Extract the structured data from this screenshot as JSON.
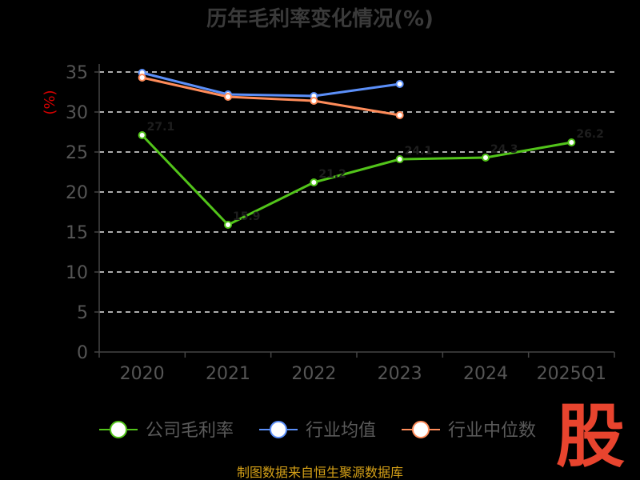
{
  "chart_data": {
    "type": "line",
    "title": "历年毛利率变化情况(%)",
    "ylabel": "(%)",
    "xlabel": "",
    "categories": [
      "2020",
      "2021",
      "2022",
      "2023",
      "2024",
      "2025Q1"
    ],
    "ylim": [
      0,
      35
    ],
    "yticks": [
      0,
      5,
      10,
      15,
      20,
      25,
      30,
      35
    ],
    "grid": true,
    "legend_position": "bottom",
    "series": [
      {
        "name": "公司毛利率",
        "color": "#52c41a",
        "values": [
          27.1,
          15.9,
          21.2,
          24.1,
          24.3,
          26.2
        ],
        "labels": [
          "27.1",
          "15.9",
          "21.2",
          "24.1",
          "24.3",
          "26.2"
        ]
      },
      {
        "name": "行业均值",
        "color": "#5b8ff9",
        "values": [
          34.9,
          32.2,
          32.0,
          33.5,
          null,
          null
        ]
      },
      {
        "name": "行业中位数",
        "color": "#ff8c5a",
        "values": [
          34.3,
          31.9,
          31.4,
          29.6,
          null,
          null
        ]
      }
    ]
  },
  "source": "制图数据来自恒生聚源数据库",
  "logo_char": "股"
}
